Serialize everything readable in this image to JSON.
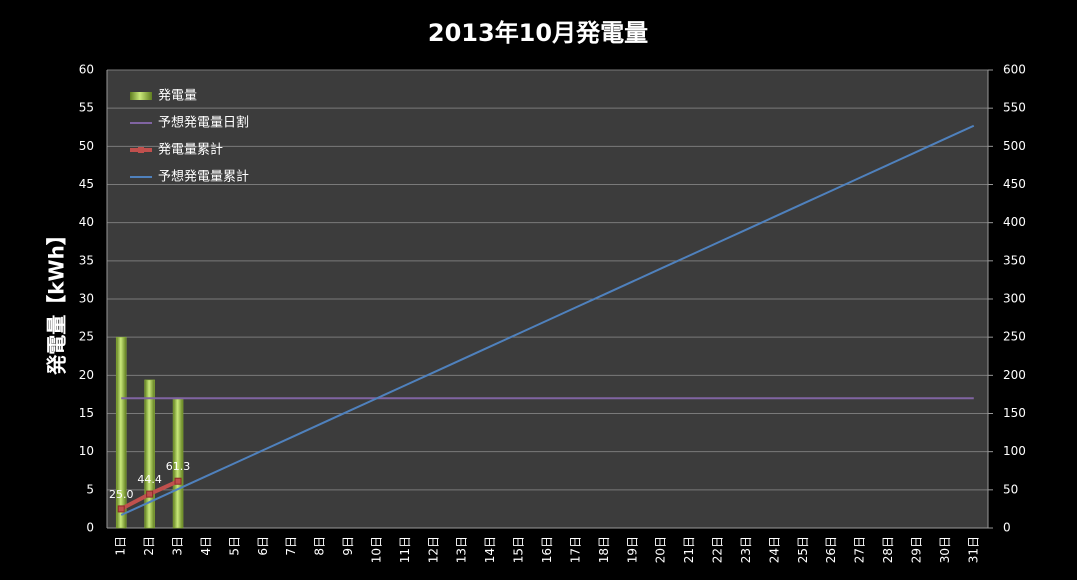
{
  "chart_data": {
    "type": "bar",
    "title": "2013年10月発電量",
    "y_label": "発電量【kWh】",
    "categories": [
      "1日",
      "2日",
      "3日",
      "4日",
      "5日",
      "6日",
      "7日",
      "8日",
      "9日",
      "10日",
      "11日",
      "12日",
      "13日",
      "14日",
      "15日",
      "16日",
      "17日",
      "18日",
      "19日",
      "20日",
      "21日",
      "22日",
      "23日",
      "24日",
      "25日",
      "26日",
      "27日",
      "28日",
      "29日",
      "30日",
      "31日"
    ],
    "series": [
      {
        "name": "発電量",
        "type": "bar",
        "axis": "y",
        "color": "#8db33a",
        "values": [
          25.0,
          19.4,
          16.9,
          null,
          null,
          null,
          null,
          null,
          null,
          null,
          null,
          null,
          null,
          null,
          null,
          null,
          null,
          null,
          null,
          null,
          null,
          null,
          null,
          null,
          null,
          null,
          null,
          null,
          null,
          null,
          null
        ]
      },
      {
        "name": "予想発電量日割",
        "type": "line",
        "axis": "y",
        "color": "#8064a2",
        "values": [
          17,
          17,
          17,
          17,
          17,
          17,
          17,
          17,
          17,
          17,
          17,
          17,
          17,
          17,
          17,
          17,
          17,
          17,
          17,
          17,
          17,
          17,
          17,
          17,
          17,
          17,
          17,
          17,
          17,
          17,
          17
        ]
      },
      {
        "name": "発電量累計",
        "type": "line",
        "axis": "y2",
        "color": "#c0504d",
        "markers": true,
        "values": [
          25.0,
          44.4,
          61.3,
          null,
          null,
          null,
          null,
          null,
          null,
          null,
          null,
          null,
          null,
          null,
          null,
          null,
          null,
          null,
          null,
          null,
          null,
          null,
          null,
          null,
          null,
          null,
          null,
          null,
          null,
          null,
          null
        ],
        "value_labels": [
          "25.0",
          "44.4",
          "61.3",
          null,
          null,
          null,
          null,
          null,
          null,
          null,
          null,
          null,
          null,
          null,
          null,
          null,
          null,
          null,
          null,
          null,
          null,
          null,
          null,
          null,
          null,
          null,
          null,
          null,
          null,
          null,
          null
        ]
      },
      {
        "name": "予想発電量累計",
        "type": "line",
        "axis": "y2",
        "color": "#4f81bd",
        "values": [
          17,
          34,
          51,
          68,
          85,
          102,
          119,
          136,
          153,
          170,
          187,
          204,
          221,
          238,
          255,
          272,
          289,
          306,
          323,
          340,
          357,
          374,
          391,
          408,
          425,
          442,
          459,
          476,
          493,
          510,
          527
        ]
      }
    ],
    "ylim": [
      0,
      60
    ],
    "yticks": [
      0,
      5,
      10,
      15,
      20,
      25,
      30,
      35,
      40,
      45,
      50,
      55,
      60
    ],
    "y2lim": [
      0,
      600
    ],
    "y2ticks": [
      0,
      50,
      100,
      150,
      200,
      250,
      300,
      350,
      400,
      450,
      500,
      550,
      600
    ],
    "grid": true,
    "legend": "top-left"
  }
}
